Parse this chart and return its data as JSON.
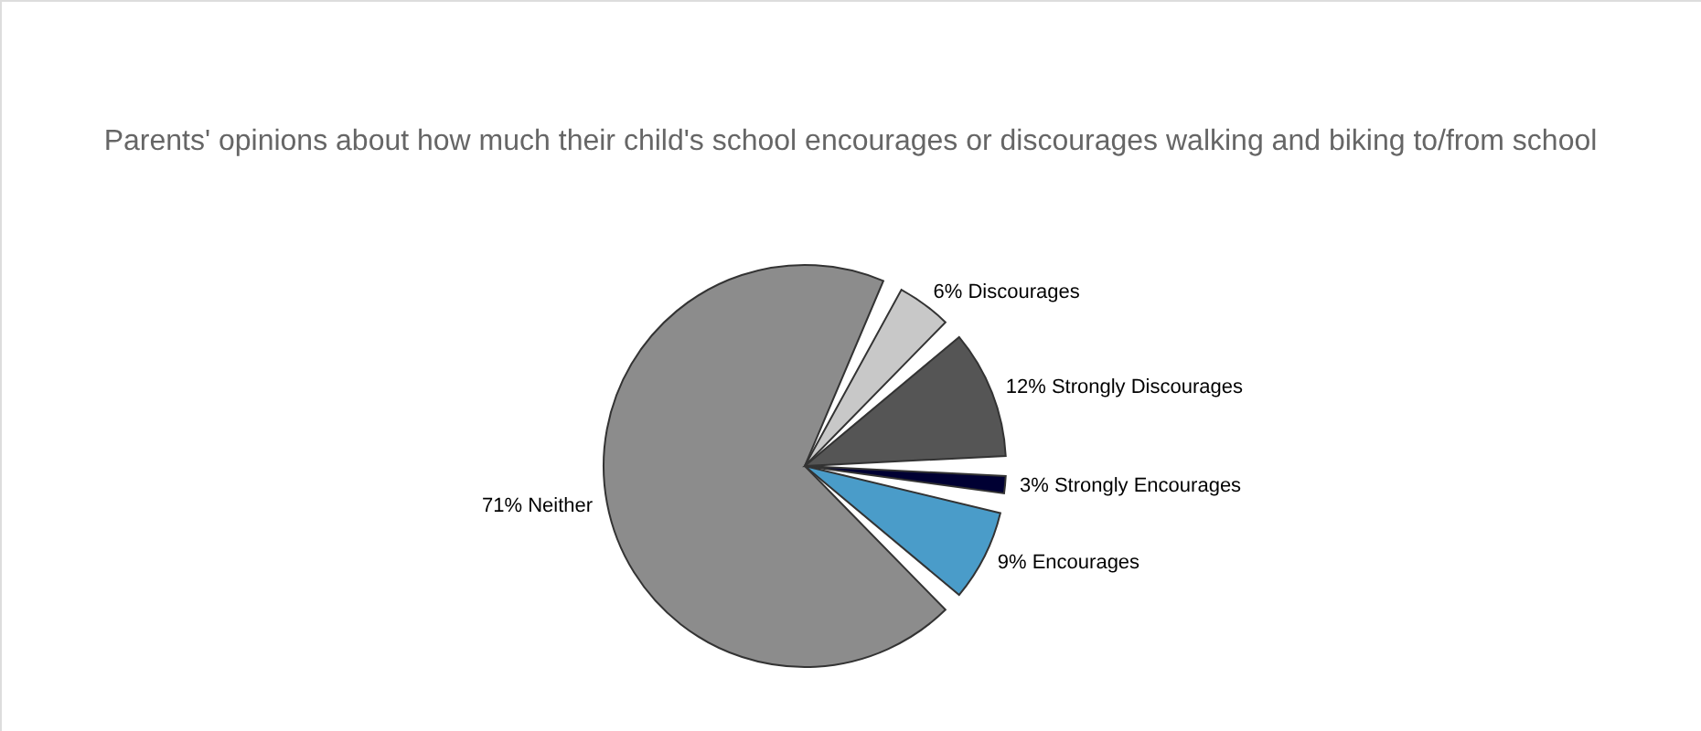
{
  "chart_data": {
    "type": "pie",
    "title": "Parents' opinions about how much their child's school encourages or discourages walking and biking to/from school",
    "categories": [
      "Strongly Encourages",
      "Encourages",
      "Neither",
      "Discourages",
      "Strongly Discourages"
    ],
    "values": [
      3,
      9,
      71,
      6,
      12
    ],
    "value_labels": [
      "3%",
      "9%",
      "71%",
      "6%",
      "12%"
    ],
    "colors": [
      "#000033",
      "#4a9cc9",
      "#8c8c8c",
      "#c8c8c8",
      "#555555"
    ]
  }
}
